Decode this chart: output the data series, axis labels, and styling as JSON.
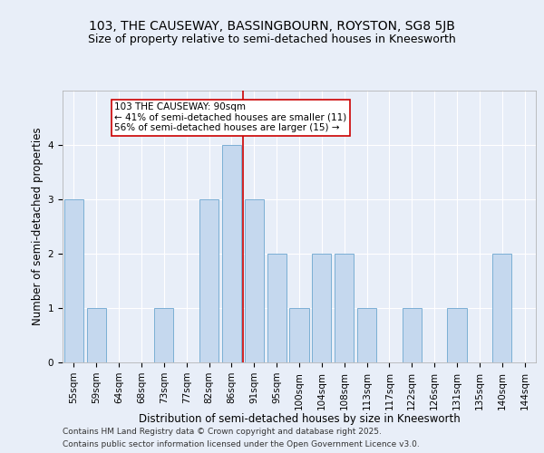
{
  "title1": "103, THE CAUSEWAY, BASSINGBOURN, ROYSTON, SG8 5JB",
  "title2": "Size of property relative to semi-detached houses in Kneesworth",
  "xlabel": "Distribution of semi-detached houses by size in Kneesworth",
  "ylabel": "Number of semi-detached properties",
  "categories": [
    "55sqm",
    "59sqm",
    "64sqm",
    "68sqm",
    "73sqm",
    "77sqm",
    "82sqm",
    "86sqm",
    "91sqm",
    "95sqm",
    "100sqm",
    "104sqm",
    "108sqm",
    "113sqm",
    "117sqm",
    "122sqm",
    "126sqm",
    "131sqm",
    "135sqm",
    "140sqm",
    "144sqm"
  ],
  "values": [
    3,
    1,
    0,
    0,
    1,
    0,
    3,
    4,
    3,
    2,
    1,
    2,
    2,
    1,
    0,
    1,
    0,
    1,
    0,
    2,
    0
  ],
  "bar_color": "#c5d8ee",
  "bar_edge_color": "#7bafd4",
  "red_line_index": 8,
  "annotation_title": "103 THE CAUSEWAY: 90sqm",
  "annotation_line1": "← 41% of semi-detached houses are smaller (11)",
  "annotation_line2": "56% of semi-detached houses are larger (15) →",
  "ylim": [
    0,
    5
  ],
  "yticks": [
    0,
    1,
    2,
    3,
    4
  ],
  "footnote1": "Contains HM Land Registry data © Crown copyright and database right 2025.",
  "footnote2": "Contains public sector information licensed under the Open Government Licence v3.0.",
  "bg_color": "#e8eef8",
  "plot_bg_color": "#e8eef8",
  "grid_color": "#ffffff",
  "title1_fontsize": 10,
  "title2_fontsize": 9,
  "axis_label_fontsize": 8.5,
  "tick_fontsize": 7.5,
  "annotation_fontsize": 7.5,
  "footnote_fontsize": 6.5
}
